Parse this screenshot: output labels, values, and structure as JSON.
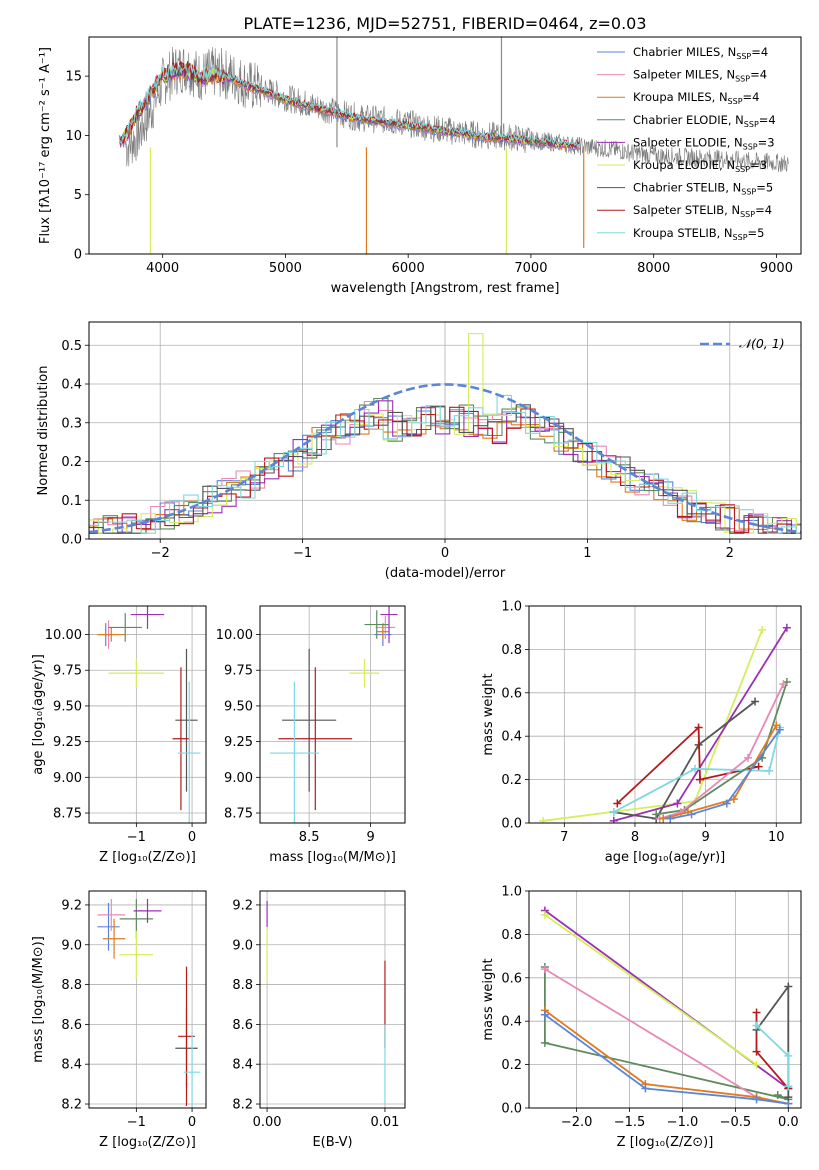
{
  "figure": {
    "title": "PLATE=1236, MJD=52751, FIBERID=0464, z=0.03",
    "colors": {
      "Chabrier MILES": "#5b86d8",
      "Salpeter MILES": "#e889b5",
      "Kroupa MILES": "#e07a1f",
      "Chabrier ELODIE": "#5f8a60",
      "Salpeter ELODIE": "#9b2fb8",
      "Kroupa ELODIE": "#d4ee5c",
      "Chabrier STELIB": "#555555",
      "Salpeter STELIB": "#b51b1b",
      "Kroupa STELIB": "#7fd8e0"
    }
  },
  "chart_data": [
    {
      "id": "spectrum",
      "type": "line",
      "xlabel": "wavelength [Angstrom, rest frame]",
      "ylabel": "Flux [fλ10⁻¹⁷ erg cm⁻² s⁻¹ A⁻¹]",
      "xlim": [
        3400,
        9200
      ],
      "ylim": [
        0,
        18.3
      ],
      "xticks": [
        4000,
        5000,
        6000,
        7000,
        8000,
        9000
      ],
      "yticks": [
        0,
        5,
        10,
        15
      ],
      "grid": false,
      "legend_position": "top-right",
      "legend": [
        {
          "label": "Chabrier MILES, N",
          "sub": "SSP",
          "tail": "=4",
          "key": "Chabrier MILES"
        },
        {
          "label": "Salpeter MILES, N",
          "sub": "SSP",
          "tail": "=4",
          "key": "Salpeter MILES"
        },
        {
          "label": "Kroupa MILES, N",
          "sub": "SSP",
          "tail": "=4",
          "key": "Kroupa MILES"
        },
        {
          "label": "Chabrier ELODIE, N",
          "sub": "SSP",
          "tail": "=4",
          "key": "Chabrier ELODIE"
        },
        {
          "label": "Salpeter ELODIE, N",
          "sub": "SSP",
          "tail": "=3",
          "key": "Salpeter ELODIE"
        },
        {
          "label": "Kroupa ELODIE, N",
          "sub": "SSP",
          "tail": "=3",
          "key": "Kroupa ELODIE"
        },
        {
          "label": "Chabrier STELIB, N",
          "sub": "SSP",
          "tail": "=5",
          "key": "Chabrier STELIB"
        },
        {
          "label": "Salpeter STELIB, N",
          "sub": "SSP",
          "tail": "=4",
          "key": "Salpeter STELIB"
        },
        {
          "label": "Kroupa STELIB, N",
          "sub": "SSP",
          "tail": "=5",
          "key": "Kroupa STELIB"
        }
      ],
      "data_wavelength": [
        3700,
        3800,
        3900,
        4000,
        4100,
        4200,
        4300,
        4400,
        4500,
        4600,
        4700,
        4800,
        4900,
        5000,
        5200,
        5400,
        5600,
        5800,
        6000,
        6200,
        6400,
        6600,
        6800,
        7000,
        7200,
        7400,
        7600,
        7800,
        8000,
        8200,
        8400,
        8600,
        8800,
        9000,
        9100
      ],
      "data_flux": [
        9,
        10,
        12,
        14.5,
        15.5,
        15.8,
        15,
        15.3,
        15.2,
        14.8,
        14.2,
        14,
        13.6,
        13.2,
        12.6,
        12,
        11.5,
        11.3,
        11,
        10.6,
        10.3,
        10,
        9.9,
        9.6,
        9.4,
        9.1,
        8.9,
        8.6,
        8.3,
        8.2,
        8.1,
        8,
        7.8,
        7.7,
        7.6
      ],
      "model_wavelength": [
        3650,
        3700,
        3800,
        3900,
        4000,
        4100,
        4200,
        4300,
        4400,
        4500,
        4600,
        4700,
        4800,
        4900,
        5000,
        5200,
        5400,
        5600,
        5800,
        6000,
        6200,
        6400,
        6600,
        6800,
        7000,
        7200,
        7400
      ],
      "model_flux": [
        9.5,
        10,
        12,
        13.5,
        15,
        15.4,
        15.5,
        14.8,
        15.1,
        15,
        14.6,
        14.1,
        13.8,
        13.4,
        13,
        12.4,
        11.9,
        11.4,
        11.1,
        10.8,
        10.5,
        10.2,
        9.9,
        9.7,
        9.5,
        9.3,
        9.1
      ]
    },
    {
      "id": "residuals",
      "type": "line",
      "xlabel": "(data-model)/error",
      "ylabel": "Normed distribution",
      "xlim": [
        -2.5,
        2.5
      ],
      "ylim": [
        0,
        0.56
      ],
      "xticks": [
        -2,
        -1,
        0,
        1,
        2
      ],
      "yticks": [
        0.0,
        0.1,
        0.2,
        0.3,
        0.4,
        0.5
      ],
      "grid": true,
      "legend_position": "top-right",
      "legend": [
        {
          "label": "𝒩(0, 1)",
          "color": "#5b86d8"
        }
      ],
      "gaussian": {
        "mean": 0,
        "sigma": 1
      }
    },
    {
      "id": "age-vs-Z",
      "type": "scatter",
      "xlabel": "Z [log₁₀(Z/Z⊙)]",
      "ylabel": "age  [log₁₀(age/yr)]",
      "xlim": [
        -1.85,
        0.25
      ],
      "ylim": [
        8.68,
        10.2
      ],
      "xticks": [
        -1,
        0
      ],
      "yticks": [
        8.75,
        9.0,
        9.25,
        9.5,
        9.75,
        10.0
      ],
      "grid": true,
      "points": [
        {
          "key": "Chabrier MILES",
          "x": -1.55,
          "y": 10.0,
          "xerr": 0.1,
          "yerr": 0.08
        },
        {
          "key": "Salpeter MILES",
          "x": -1.5,
          "y": 10.0,
          "xerr": 0.2,
          "yerr": 0.1
        },
        {
          "key": "Kroupa MILES",
          "x": -1.45,
          "y": 10.0,
          "xerr": 0.25,
          "yerr": 0.05
        },
        {
          "key": "Chabrier ELODIE",
          "x": -1.2,
          "y": 10.05,
          "xerr": 0.3,
          "yerr": 0.1
        },
        {
          "key": "Salpeter ELODIE",
          "x": -0.8,
          "y": 10.14,
          "xerr": 0.3,
          "yerr": 0.1
        },
        {
          "key": "Kroupa ELODIE",
          "x": -1.0,
          "y": 9.73,
          "xerr": 0.5,
          "yerr": 0.1
        },
        {
          "key": "Chabrier STELIB",
          "x": -0.1,
          "y": 9.4,
          "xerr": 0.2,
          "yerr": 0.5
        },
        {
          "key": "Salpeter STELIB",
          "x": -0.2,
          "y": 9.27,
          "xerr": 0.15,
          "yerr": 0.5
        },
        {
          "key": "Kroupa STELIB",
          "x": -0.05,
          "y": 9.17,
          "xerr": 0.2,
          "yerr": 0.5
        }
      ]
    },
    {
      "id": "age-vs-mass",
      "type": "scatter",
      "xlabel": "mass [log₁₀(M/M⊙)]",
      "ylabel": "",
      "xlim": [
        8.1,
        9.28
      ],
      "ylim": [
        8.68,
        10.2
      ],
      "xticks": [
        8.5,
        9.0
      ],
      "yticks": [
        8.75,
        9.0,
        9.25,
        9.5,
        9.75,
        10.0
      ],
      "grid": true,
      "points": [
        {
          "key": "Chabrier MILES",
          "x": 9.1,
          "y": 10.0,
          "xerr": 0.07,
          "yerr": 0.08
        },
        {
          "key": "Salpeter MILES",
          "x": 9.12,
          "y": 10.05,
          "xerr": 0.08,
          "yerr": 0.08
        },
        {
          "key": "Kroupa MILES",
          "x": 9.1,
          "y": 10.02,
          "xerr": 0.05,
          "yerr": 0.05
        },
        {
          "key": "Chabrier ELODIE",
          "x": 9.05,
          "y": 10.07,
          "xerr": 0.1,
          "yerr": 0.1
        },
        {
          "key": "Salpeter ELODIE",
          "x": 9.15,
          "y": 10.14,
          "xerr": 0.07,
          "yerr": 0.2
        },
        {
          "key": "Kroupa ELODIE",
          "x": 8.95,
          "y": 9.73,
          "xerr": 0.12,
          "yerr": 0.1
        },
        {
          "key": "Chabrier STELIB",
          "x": 8.5,
          "y": 9.4,
          "xerr": 0.22,
          "yerr": 0.5
        },
        {
          "key": "Salpeter STELIB",
          "x": 8.55,
          "y": 9.27,
          "xerr": 0.3,
          "yerr": 0.5
        },
        {
          "key": "Kroupa STELIB",
          "x": 8.38,
          "y": 9.17,
          "xerr": 0.2,
          "yerr": 0.5
        }
      ]
    },
    {
      "id": "weight-vs-age",
      "type": "line",
      "xlabel": "age  [log₁₀(age/yr)]",
      "ylabel": "mass weight",
      "xlim": [
        6.5,
        10.35
      ],
      "ylim": [
        0,
        1.0
      ],
      "xticks": [
        7,
        8,
        9,
        10
      ],
      "yticks": [
        0.0,
        0.2,
        0.4,
        0.6,
        0.8,
        1.0
      ],
      "grid": true,
      "series": [
        {
          "key": "Kroupa ELODIE",
          "x": [
            6.7,
            8.85,
            9.8
          ],
          "y": [
            0.01,
            0.1,
            0.89
          ]
        },
        {
          "key": "Salpeter ELODIE",
          "x": [
            7.7,
            8.6,
            10.15
          ],
          "y": [
            0.01,
            0.09,
            0.9
          ]
        },
        {
          "key": "Chabrier STELIB",
          "x": [
            7.7,
            8.3,
            8.9,
            9.7
          ],
          "y": [
            0.05,
            0.02,
            0.36,
            0.56
          ]
        },
        {
          "key": "Salpeter STELIB",
          "x": [
            7.75,
            8.9,
            8.92,
            9.75
          ],
          "y": [
            0.09,
            0.44,
            0.2,
            0.26
          ]
        },
        {
          "key": "Kroupa STELIB",
          "x": [
            7.7,
            8.85,
            9.9,
            10.05
          ],
          "y": [
            0.05,
            0.25,
            0.24,
            0.44
          ]
        },
        {
          "key": "Chabrier ELODIE",
          "x": [
            8.3,
            8.7,
            9.8,
            10.15
          ],
          "y": [
            0.04,
            0.06,
            0.3,
            0.65
          ]
        },
        {
          "key": "Salpeter MILES",
          "x": [
            8.35,
            8.65,
            9.6,
            10.1
          ],
          "y": [
            0.02,
            0.05,
            0.3,
            0.64
          ]
        },
        {
          "key": "Kroupa MILES",
          "x": [
            8.4,
            8.75,
            9.4,
            10.0
          ],
          "y": [
            0.02,
            0.05,
            0.11,
            0.45
          ]
        },
        {
          "key": "Chabrier MILES",
          "x": [
            8.5,
            8.8,
            9.3,
            10.05
          ],
          "y": [
            0.02,
            0.04,
            0.09,
            0.43
          ]
        }
      ]
    },
    {
      "id": "mass-vs-Z",
      "type": "scatter",
      "xlabel": "Z [log₁₀(Z/Z⊙)]",
      "ylabel": "mass [log₁₀(M/M⊙)]",
      "xlim": [
        -1.85,
        0.25
      ],
      "ylim": [
        8.18,
        9.27
      ],
      "xticks": [
        -1,
        0
      ],
      "yticks": [
        8.2,
        8.4,
        8.6,
        8.8,
        9.0,
        9.2
      ],
      "grid": true,
      "points": [
        {
          "key": "Chabrier MILES",
          "x": -1.5,
          "y": 9.09,
          "xerr": 0.2,
          "yerr": 0.12
        },
        {
          "key": "Salpeter MILES",
          "x": -1.45,
          "y": 9.15,
          "xerr": 0.25,
          "yerr": 0.08
        },
        {
          "key": "Kroupa MILES",
          "x": -1.4,
          "y": 9.03,
          "xerr": 0.2,
          "yerr": 0.1
        },
        {
          "key": "Chabrier ELODIE",
          "x": -1.0,
          "y": 9.13,
          "xerr": 0.3,
          "yerr": 0.1
        },
        {
          "key": "Salpeter ELODIE",
          "x": -0.8,
          "y": 9.17,
          "xerr": 0.25,
          "yerr": 0.06
        },
        {
          "key": "Kroupa ELODIE",
          "x": -1.0,
          "y": 8.95,
          "xerr": 0.3,
          "yerr": 0.12
        },
        {
          "key": "Chabrier STELIB",
          "x": -0.1,
          "y": 8.48,
          "xerr": 0.2,
          "yerr": 0.2
        },
        {
          "key": "Salpeter STELIB",
          "x": -0.1,
          "y": 8.54,
          "xerr": 0.15,
          "yerr": 0.35
        },
        {
          "key": "Kroupa STELIB",
          "x": 0.0,
          "y": 8.36,
          "xerr": 0.15,
          "yerr": 0.2
        }
      ]
    },
    {
      "id": "mass-vs-ebv",
      "type": "scatter",
      "xlabel": "E(B-V)",
      "ylabel": "",
      "xlim": [
        -0.0006,
        0.0117
      ],
      "ylim": [
        8.18,
        9.27
      ],
      "xticks": [
        0.0,
        0.01
      ],
      "xticklabels": [
        "0.00",
        "0.01"
      ],
      "yticks": [
        8.2,
        8.4,
        8.6,
        8.8,
        9.0,
        9.2
      ],
      "grid": true,
      "points": [
        {
          "key": "Salpeter ELODIE",
          "x": 0.0,
          "y": 9.15,
          "xerr": 0,
          "yerr": 0.07
        },
        {
          "key": "Kroupa ELODIE",
          "x": 0.0,
          "y": 8.95,
          "xerr": 0,
          "yerr": 0.14
        },
        {
          "key": "Salpeter STELIB",
          "x": 0.01,
          "y": 8.7,
          "xerr": 0,
          "yerr": 0.22
        },
        {
          "key": "Kroupa STELIB",
          "x": 0.01,
          "y": 8.4,
          "xerr": 0,
          "yerr": 0.2
        }
      ]
    },
    {
      "id": "weight-vs-Z",
      "type": "line",
      "xlabel": "Z [log₁₀(Z/Z⊙)]",
      "ylabel": "mass weight",
      "xlim": [
        -2.45,
        0.12
      ],
      "ylim": [
        0,
        1.0
      ],
      "xticks": [
        -2.0,
        -1.5,
        -1.0,
        -0.5,
        0.0
      ],
      "xticklabels": [
        "−2.0",
        "−1.5",
        "−1.0",
        "−0.5",
        "0.0"
      ],
      "yticks": [
        0.0,
        0.2,
        0.4,
        0.6,
        0.8,
        1.0
      ],
      "grid": true,
      "series": [
        {
          "key": "Salpeter ELODIE",
          "x": [
            -2.3,
            0.0
          ],
          "y": [
            0.91,
            0.09
          ]
        },
        {
          "key": "Kroupa ELODIE",
          "x": [
            -2.3,
            -0.3
          ],
          "y": [
            0.89,
            0.2
          ]
        },
        {
          "key": "Chabrier ELODIE",
          "x": [
            -2.3,
            -2.3,
            0.0,
            -0.1
          ],
          "y": [
            0.65,
            0.3,
            0.04,
            0.06
          ]
        },
        {
          "key": "Salpeter MILES",
          "x": [
            -2.3,
            -0.3,
            0.0
          ],
          "y": [
            0.64,
            0.05,
            0.02
          ]
        },
        {
          "key": "Kroupa MILES",
          "x": [
            -2.3,
            -1.35,
            -0.3,
            0.0
          ],
          "y": [
            0.45,
            0.11,
            0.05,
            0.02
          ]
        },
        {
          "key": "Chabrier MILES",
          "x": [
            -2.3,
            -1.35,
            -0.3,
            0.0
          ],
          "y": [
            0.43,
            0.09,
            0.04,
            0.02
          ]
        },
        {
          "key": "Salpeter STELIB",
          "x": [
            -0.3,
            -0.3,
            0.0
          ],
          "y": [
            0.44,
            0.26,
            0.09
          ]
        },
        {
          "key": "Chabrier STELIB",
          "x": [
            -0.3,
            0.0,
            0.0
          ],
          "y": [
            0.36,
            0.56,
            0.05
          ]
        },
        {
          "key": "Kroupa STELIB",
          "x": [
            -0.3,
            0.0,
            0.0
          ],
          "y": [
            0.38,
            0.24,
            0.1
          ]
        }
      ]
    }
  ]
}
